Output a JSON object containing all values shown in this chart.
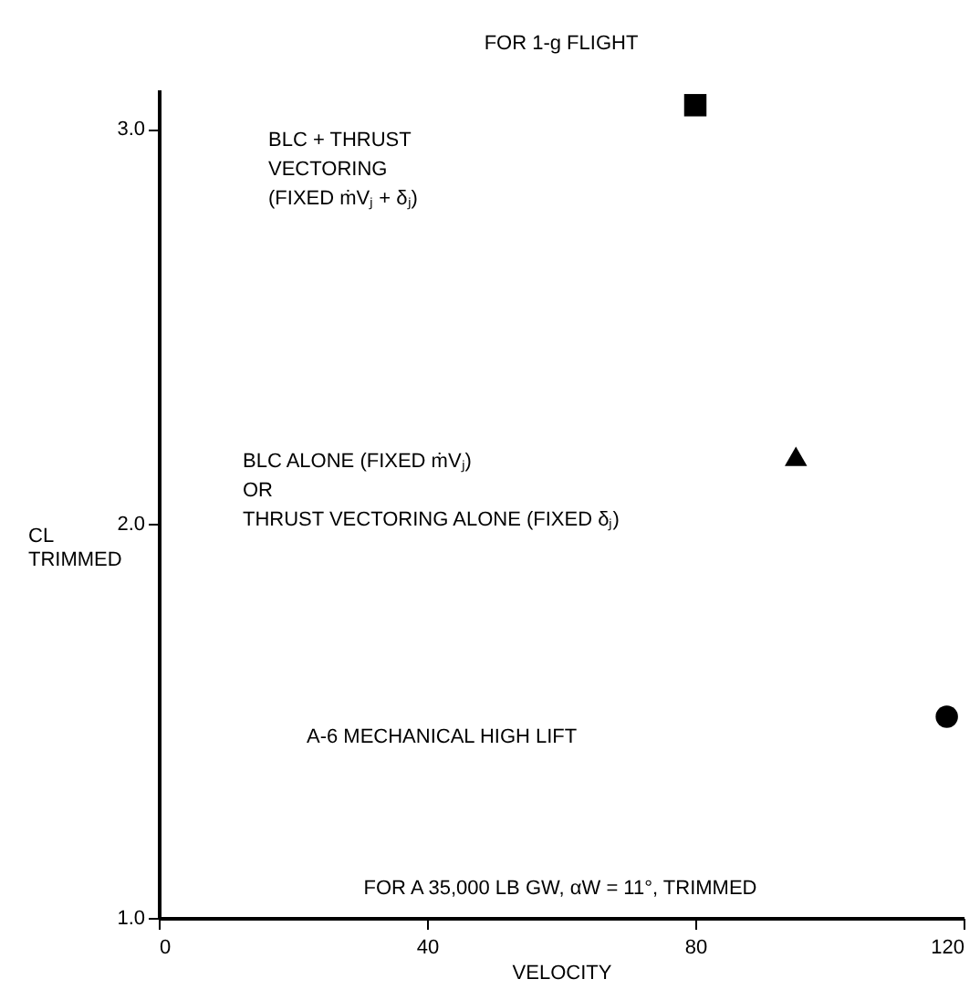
{
  "chart_data": {
    "type": "scatter",
    "title": "FOR 1-g FLIGHT",
    "xlabel": "VELOCITY",
    "ylabel": "CL\nTRIMMED",
    "series": [
      {
        "color": "#000000",
        "marker": "square",
        "x": [
          80
        ],
        "values": [
          3.06
        ]
      },
      {
        "color": "#000000",
        "marker": "triangle",
        "x": [
          95
        ],
        "values": [
          2.17
        ]
      },
      {
        "color": "#000000",
        "marker": "circle",
        "x": [
          117.5
        ],
        "values": [
          1.51
        ]
      }
    ],
    "annotations": [
      "BLC + THRUST\nVECTORING\n(FIXED ṁVⱼ + δⱼ)",
      "BLC ALONE (FIXED ṁVⱼ)\nOR\nTHRUST VECTORING ALONE (FIXED δⱼ)",
      "A-6 MECHANICAL HIGH LIFT",
      "FOR A 35,000 LB GW, αW = 11°, TRIMMED"
    ],
    "xlim": [
      0,
      120
    ],
    "xticks": [
      0,
      40,
      80,
      120
    ],
    "ylim": [
      1.0,
      3.1
    ],
    "yticks": [
      {
        "value": 1.0,
        "label": "1.0"
      },
      {
        "value": 2.0,
        "label": "2.0"
      },
      {
        "value": 3.0,
        "label": "3.0"
      }
    ],
    "grid": false
  }
}
